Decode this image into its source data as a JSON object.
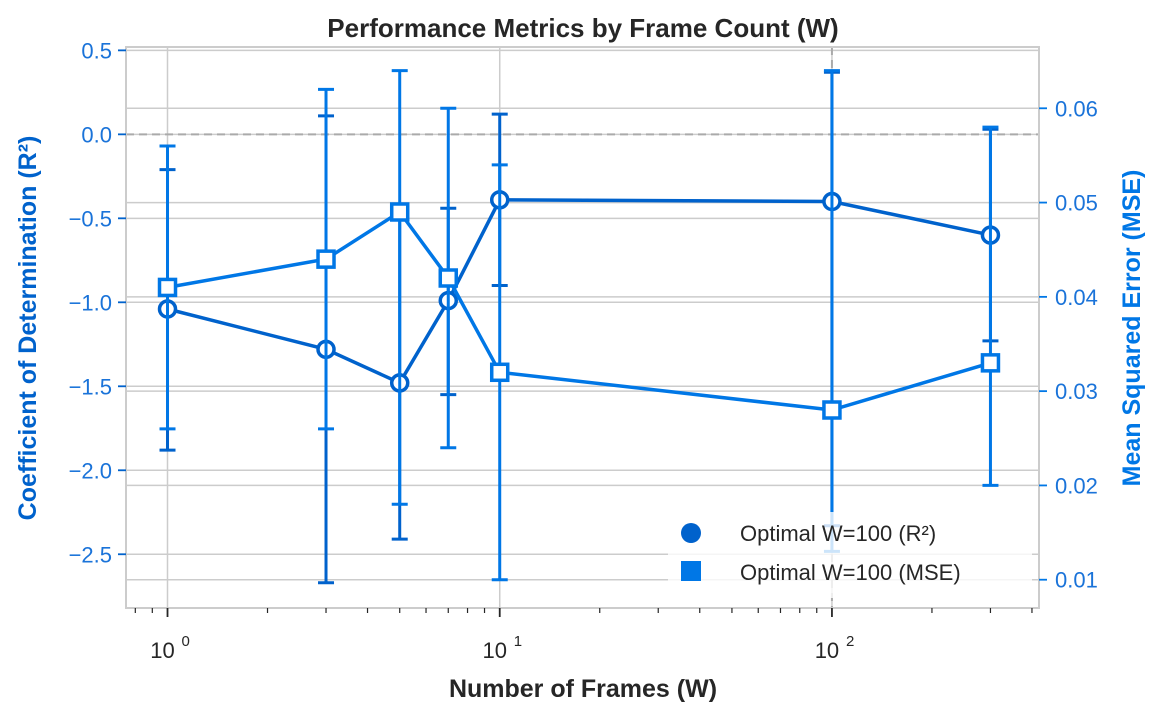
{
  "chart_data": {
    "type": "line",
    "title": "Performance Metrics by Frame Count (W)",
    "xlabel": "Number of Frames (W)",
    "ylabel_left": "Coefficient of Determination (R²)",
    "ylabel_right": "Mean Squared Error (MSE)",
    "x_scale": "log",
    "xlim": [
      0.75,
      420
    ],
    "ylim_left": [
      -2.82,
      0.52
    ],
    "ylim_right": [
      0.007,
      0.0665
    ],
    "x": [
      1,
      3,
      5,
      7,
      10,
      100,
      300
    ],
    "x_tick_labels": [
      {
        "base": "10",
        "exp": "0",
        "value": 1
      },
      {
        "base": "10",
        "exp": "1",
        "value": 10
      },
      {
        "base": "10",
        "exp": "2",
        "value": 100
      }
    ],
    "left_ticks": [
      0.5,
      0.0,
      -0.5,
      -1.0,
      -1.5,
      -2.0,
      -2.5
    ],
    "left_tick_labels": [
      "0.5",
      "0.0",
      "−0.5",
      "−1.0",
      "−1.5",
      "−2.0",
      "−2.5"
    ],
    "right_ticks": [
      0.06,
      0.05,
      0.04,
      0.03,
      0.02,
      0.01
    ],
    "right_tick_labels": [
      "0.06",
      "0.05",
      "0.04",
      "0.03",
      "0.02",
      "0.01"
    ],
    "reference_lines": {
      "y_left": 0.0,
      "x": 100
    },
    "grid": true,
    "legend_position": "bottom-right",
    "colors": {
      "r2": "#0062cc",
      "mse": "#0077e6",
      "axis_text": "#1a73d9",
      "text": "#262626",
      "grid": "#cccccc",
      "refline": "#aaaaaa"
    },
    "series": [
      {
        "name": "Optimal W=100 (R²)",
        "axis": "left",
        "marker": "circle",
        "values": [
          -1.04,
          -1.28,
          -1.48,
          -0.99,
          -0.39,
          -0.4,
          -0.6
        ],
        "err_low": [
          -1.88,
          -2.67,
          -2.41,
          -1.55,
          -0.9,
          -2.33,
          -1.23
        ],
        "err_high": [
          -0.21,
          0.11,
          -0.51,
          -0.44,
          0.12,
          0.37,
          0.03
        ]
      },
      {
        "name": "Optimal W=100 (MSE)",
        "axis": "right",
        "marker": "square",
        "values": [
          0.041,
          0.044,
          0.049,
          0.042,
          0.032,
          0.028,
          0.033
        ],
        "err_low": [
          0.026,
          0.026,
          0.018,
          0.024,
          0.01,
          0.013,
          0.02
        ],
        "err_high": [
          0.056,
          0.062,
          0.064,
          0.06,
          0.054,
          0.064,
          0.058
        ]
      }
    ]
  }
}
